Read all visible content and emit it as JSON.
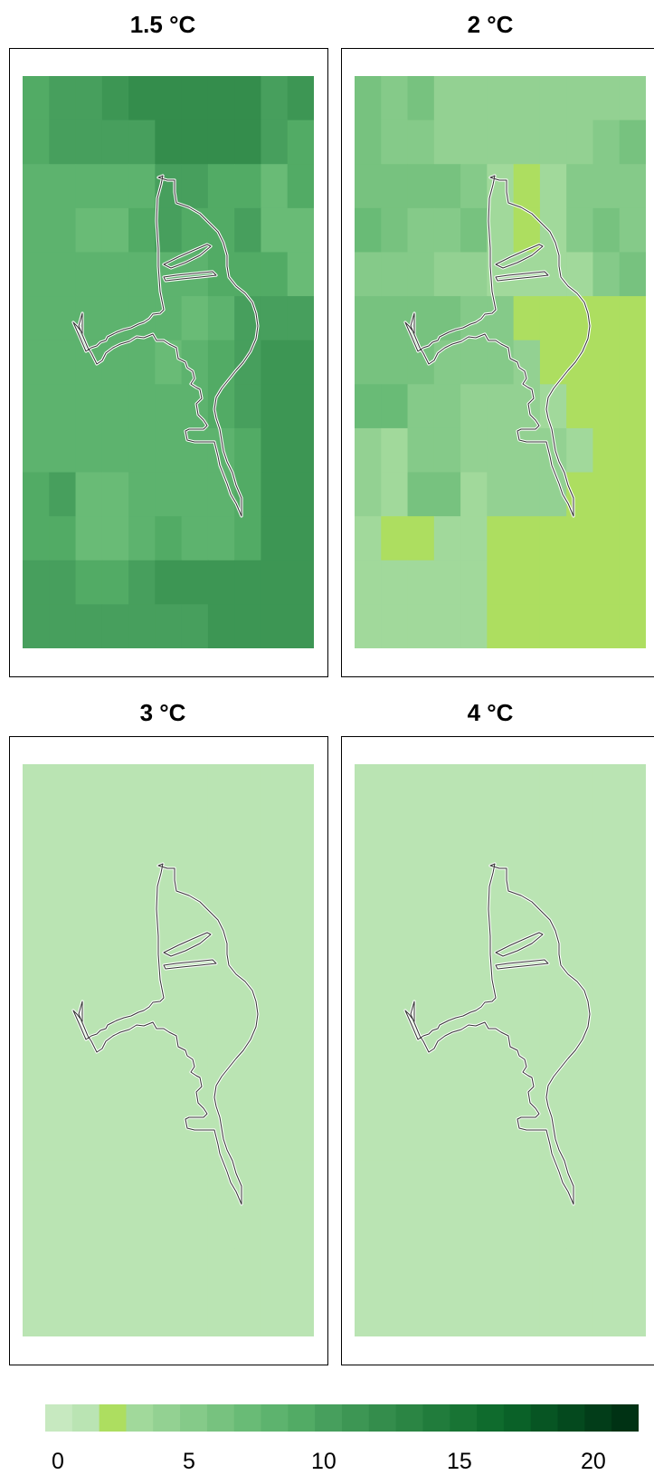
{
  "panels": [
    {
      "title": "1.5 °C",
      "grid": [
        [
          9,
          10,
          10,
          11,
          12,
          12,
          12,
          12,
          12,
          10,
          11
        ],
        [
          9,
          10,
          10,
          10,
          10,
          12,
          12,
          12,
          12,
          10,
          9
        ],
        [
          8,
          8,
          8,
          8,
          8,
          10,
          10,
          9,
          9,
          7,
          9
        ],
        [
          8,
          8,
          7,
          7,
          9,
          10,
          9,
          9,
          10,
          7,
          7
        ],
        [
          8,
          8,
          8,
          8,
          8,
          8,
          8,
          9,
          9,
          9,
          7
        ],
        [
          8,
          8,
          8,
          8,
          8,
          8,
          7,
          8,
          10,
          10,
          10
        ],
        [
          8,
          8,
          8,
          8,
          8,
          7,
          8,
          9,
          10,
          11,
          11
        ],
        [
          8,
          8,
          8,
          8,
          8,
          8,
          8,
          9,
          10,
          11,
          11
        ],
        [
          8,
          8,
          8,
          8,
          8,
          8,
          8,
          8,
          9,
          11,
          11
        ],
        [
          9,
          10,
          7,
          7,
          8,
          8,
          8,
          8,
          9,
          11,
          11
        ],
        [
          9,
          9,
          7,
          7,
          8,
          9,
          8,
          8,
          9,
          11,
          11
        ],
        [
          10,
          10,
          9,
          9,
          10,
          11,
          11,
          11,
          11,
          11,
          11
        ],
        [
          10,
          10,
          10,
          10,
          10,
          10,
          10,
          11,
          11,
          11,
          11
        ]
      ]
    },
    {
      "title": "2 °C",
      "grid": [
        [
          6,
          5,
          6,
          4,
          4,
          4,
          4,
          4,
          4,
          4,
          4
        ],
        [
          6,
          5,
          5,
          4,
          4,
          4,
          4,
          4,
          4,
          5,
          6
        ],
        [
          6,
          6,
          6,
          6,
          5,
          3,
          2,
          3,
          5,
          5,
          5
        ],
        [
          7,
          6,
          5,
          5,
          6,
          3,
          2,
          3,
          5,
          6,
          5
        ],
        [
          5,
          5,
          5,
          4,
          4,
          3,
          3,
          3,
          3,
          5,
          6
        ],
        [
          6,
          6,
          6,
          6,
          5,
          5,
          2,
          2,
          2,
          2,
          2
        ],
        [
          6,
          6,
          6,
          5,
          5,
          5,
          4,
          2,
          2,
          2,
          2
        ],
        [
          7,
          7,
          5,
          5,
          4,
          4,
          4,
          3,
          2,
          2,
          2
        ],
        [
          4,
          3,
          5,
          5,
          4,
          4,
          4,
          4,
          3,
          2,
          2
        ],
        [
          4,
          3,
          6,
          6,
          3,
          4,
          4,
          4,
          2,
          2,
          2
        ],
        [
          3,
          2,
          2,
          3,
          3,
          2,
          2,
          2,
          2,
          2,
          2
        ],
        [
          3,
          3,
          3,
          3,
          3,
          2,
          2,
          2,
          2,
          2,
          2
        ],
        [
          3,
          3,
          3,
          3,
          3,
          2,
          2,
          2,
          2,
          2,
          2
        ]
      ]
    },
    {
      "title": "3 °C",
      "grid": [
        [
          1,
          1,
          1,
          1,
          1,
          1,
          1,
          1,
          1,
          1,
          1
        ],
        [
          1,
          1,
          1,
          1,
          1,
          1,
          1,
          1,
          1,
          1,
          1
        ],
        [
          1,
          1,
          1,
          1,
          1,
          1,
          1,
          1,
          1,
          1,
          1
        ],
        [
          1,
          1,
          1,
          1,
          1,
          1,
          1,
          1,
          1,
          1,
          1
        ],
        [
          1,
          1,
          1,
          1,
          1,
          1,
          1,
          1,
          1,
          1,
          1
        ],
        [
          1,
          1,
          1,
          1,
          1,
          1,
          1,
          1,
          1,
          1,
          1
        ],
        [
          1,
          1,
          1,
          1,
          1,
          1,
          1,
          1,
          1,
          1,
          1
        ],
        [
          1,
          1,
          1,
          1,
          1,
          1,
          1,
          1,
          1,
          1,
          1
        ],
        [
          1,
          1,
          1,
          1,
          1,
          1,
          1,
          1,
          1,
          1,
          1
        ],
        [
          1,
          1,
          1,
          1,
          1,
          1,
          1,
          1,
          1,
          1,
          1
        ],
        [
          1,
          1,
          1,
          1,
          1,
          1,
          1,
          1,
          1,
          1,
          1
        ],
        [
          1,
          1,
          1,
          1,
          1,
          1,
          1,
          1,
          1,
          1,
          1
        ],
        [
          1,
          1,
          1,
          1,
          1,
          1,
          1,
          1,
          1,
          1,
          1
        ]
      ]
    },
    {
      "title": "4 °C",
      "grid": [
        [
          1,
          1,
          1,
          1,
          1,
          1,
          1,
          1,
          1,
          1,
          1
        ],
        [
          1,
          1,
          1,
          1,
          1,
          1,
          1,
          1,
          1,
          1,
          1
        ],
        [
          1,
          1,
          1,
          1,
          1,
          1,
          1,
          1,
          1,
          1,
          1
        ],
        [
          1,
          1,
          1,
          1,
          1,
          1,
          1,
          1,
          1,
          1,
          1
        ],
        [
          1,
          1,
          1,
          1,
          1,
          1,
          1,
          1,
          1,
          1,
          1
        ],
        [
          1,
          1,
          1,
          1,
          1,
          1,
          1,
          1,
          1,
          1,
          1
        ],
        [
          1,
          1,
          1,
          1,
          1,
          1,
          1,
          1,
          1,
          1,
          1
        ],
        [
          1,
          1,
          1,
          1,
          1,
          1,
          1,
          1,
          1,
          1,
          1
        ],
        [
          1,
          1,
          1,
          1,
          1,
          1,
          1,
          1,
          1,
          1,
          1
        ],
        [
          1,
          1,
          1,
          1,
          1,
          1,
          1,
          1,
          1,
          1,
          1
        ],
        [
          1,
          1,
          1,
          1,
          1,
          1,
          1,
          1,
          1,
          1,
          1
        ],
        [
          1,
          1,
          1,
          1,
          1,
          1,
          1,
          1,
          1,
          1,
          1
        ],
        [
          1,
          1,
          1,
          1,
          1,
          1,
          1,
          1,
          1,
          1,
          1
        ]
      ]
    }
  ],
  "legend": {
    "min": 0,
    "max": 22,
    "tick_labels": [
      "0",
      "5",
      "10",
      "15",
      "20"
    ],
    "colors": [
      "#c7e9c0",
      "#bae4b3",
      "#addeа6",
      "#a1d99b",
      "#93d192",
      "#85ca89",
      "#77c27f",
      "#69bb76",
      "#5db36e",
      "#52ab65",
      "#479f5d",
      "#3d9654",
      "#348d4c",
      "#2b8544",
      "#217c3c",
      "#187434",
      "#0f6b2d",
      "#0a6128",
      "#075523",
      "#04491e",
      "#023d19",
      "#003214"
    ]
  }
}
